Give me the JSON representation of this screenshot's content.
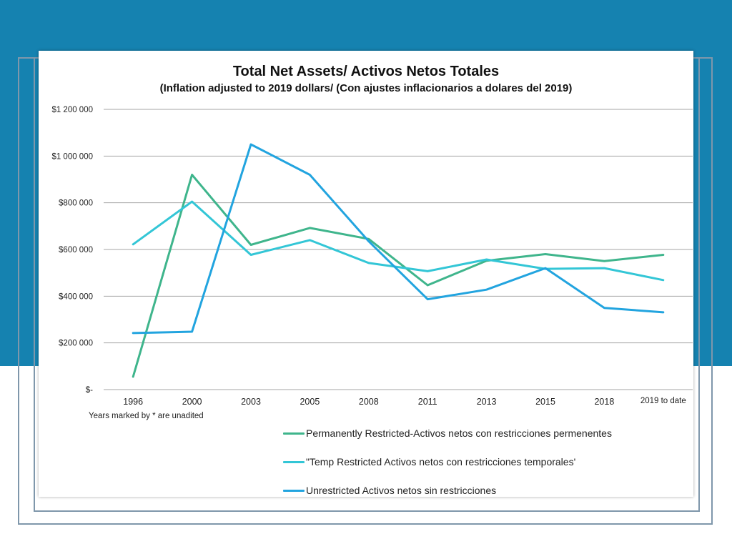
{
  "colors": {
    "background_band": "#1582b0",
    "card_bg": "#ffffff",
    "gridline": "#a6a6a6",
    "axis_text": "#222222"
  },
  "footnote": "Years marked by * are unadited",
  "chart_data": {
    "type": "line",
    "title": "Total Net Assets/ Activos Netos Totales",
    "subtitle": "(Inflation adjusted to 2019 dollars/ (Con ajustes inflacionarios a dolares del 2019)",
    "xlabel": "",
    "ylabel": "",
    "categories": [
      "1996",
      "2000",
      "2003",
      "2005",
      "2008",
      "2011",
      "2013",
      "2015",
      "2018",
      "2019 to date"
    ],
    "ylim": [
      0,
      1200000
    ],
    "yticks": [
      {
        "value": 0,
        "label": "$-"
      },
      {
        "value": 200000,
        "label": "$200 000"
      },
      {
        "value": 400000,
        "label": "$400 000"
      },
      {
        "value": 600000,
        "label": "$600 000"
      },
      {
        "value": 800000,
        "label": "$800 000"
      },
      {
        "value": 1000000,
        "label": "$1 000 000"
      },
      {
        "value": 1200000,
        "label": "$1 200 000"
      }
    ],
    "grid": true,
    "legend_position": "bottom-right",
    "series": [
      {
        "name": "Permanently Restricted-Activos netos con restricciones permenentes",
        "color": "#3fb58c",
        "values": [
          55000,
          920000,
          620000,
          692000,
          645000,
          447000,
          552000,
          580000,
          550000,
          577000
        ]
      },
      {
        "name": "\"Temp Restricted Activos netos con restricciones temporales'",
        "color": "#33c6d6",
        "values": [
          622000,
          805000,
          577000,
          640000,
          542000,
          507000,
          557000,
          517000,
          520000,
          469000
        ]
      },
      {
        "name": "Unrestricted Activos netos sin restricciones",
        "color": "#22a4df",
        "values": [
          242000,
          248000,
          1050000,
          920000,
          635000,
          387000,
          428000,
          520000,
          350000,
          331000
        ]
      }
    ]
  }
}
